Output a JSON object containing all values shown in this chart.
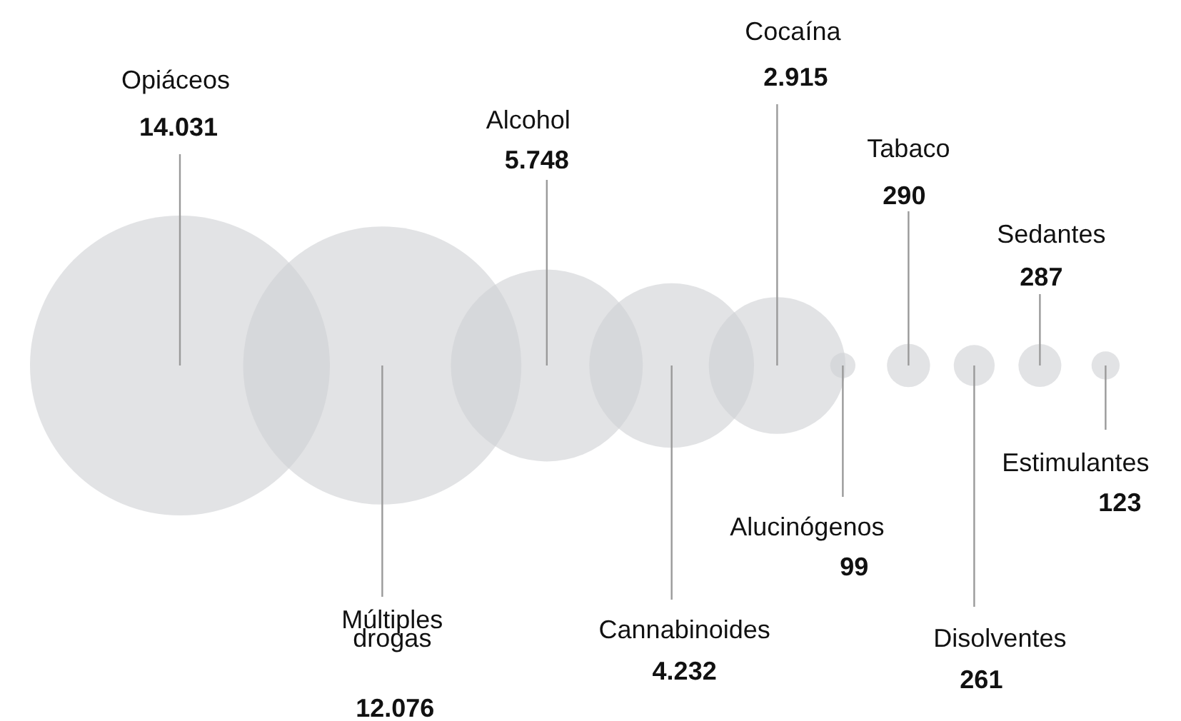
{
  "chart_data": {
    "type": "other",
    "categories": [
      "Opiáceos",
      "Múltiples drogas",
      "Alcohol",
      "Cannabinoides",
      "Cocaína",
      "Alucinógenos",
      "Tabaco",
      "Disolventes",
      "Sedantes",
      "Estimulantes"
    ],
    "values": [
      14031,
      12076,
      5748,
      4232,
      2915,
      99,
      290,
      261,
      287,
      123
    ],
    "value_labels": [
      "14.031",
      "12.076",
      "5.748",
      "4.232",
      "2.915",
      "99",
      "290",
      "261",
      "287",
      "123"
    ],
    "color": "#e2e3e5"
  }
}
